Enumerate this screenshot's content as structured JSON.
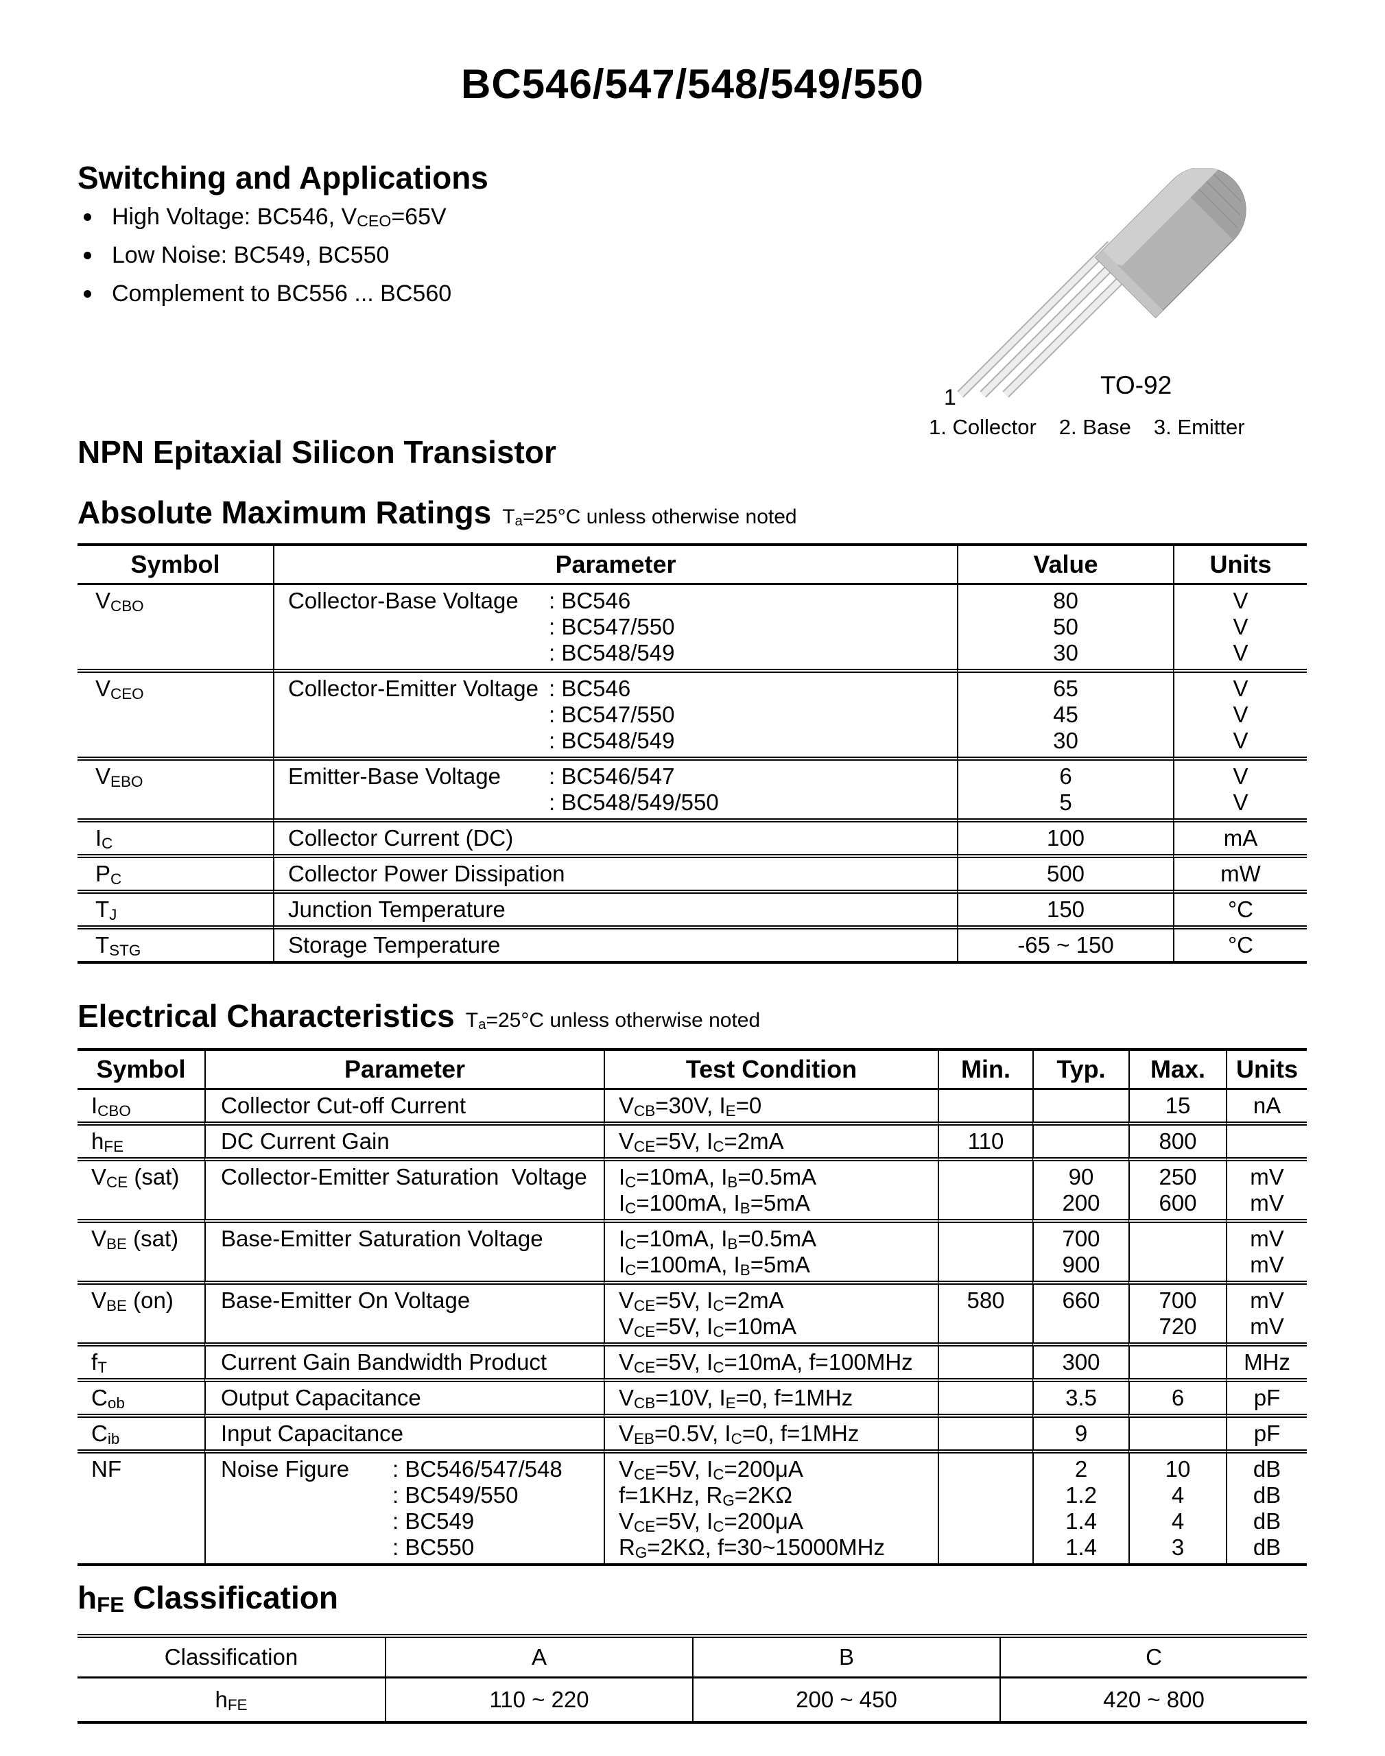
{
  "title": "BC546/547/548/549/550",
  "switching": {
    "heading": "Switching and Applications",
    "bullets": [
      "High Voltage: BC546, V_{CEO}=65V",
      "Low Noise: BC549, BC550",
      "Complement to BC556 ... BC560"
    ]
  },
  "figure": {
    "pin1_label": "1",
    "package_name": "TO-92",
    "caption": [
      "1. Collector",
      "2. Base",
      "3. Emitter"
    ]
  },
  "npn_heading": "NPN Epitaxial Silicon Transistor",
  "amr": {
    "heading": "Absolute Maximum Ratings",
    "note": "T_{a}=25°C unless otherwise noted",
    "headers": [
      "Symbol",
      "Parameter",
      "Value",
      "Units"
    ],
    "rows": [
      {
        "symbol": "V_{CBO}",
        "param": "Collector-Base Voltage",
        "variants": [
          ": BC546",
          ": BC547/550",
          ": BC548/549"
        ],
        "values": [
          "80",
          "50",
          "30"
        ],
        "units": [
          "V",
          "V",
          "V"
        ]
      },
      {
        "symbol": "V_{CEO}",
        "param": "Collector-Emitter Voltage",
        "variants": [
          ": BC546",
          ": BC547/550",
          ": BC548/549"
        ],
        "values": [
          "65",
          "45",
          "30"
        ],
        "units": [
          "V",
          "V",
          "V"
        ]
      },
      {
        "symbol": "V_{EBO}",
        "param": "Emitter-Base Voltage",
        "variants": [
          ": BC546/547",
          ": BC548/549/550"
        ],
        "values": [
          "6",
          "5"
        ],
        "units": [
          "V",
          "V"
        ]
      },
      {
        "symbol": "I_{C}",
        "param": "Collector Current (DC)",
        "variants": [],
        "values": [
          "100"
        ],
        "units": [
          "mA"
        ]
      },
      {
        "symbol": "P_{C}",
        "param": "Collector Power Dissipation",
        "variants": [],
        "values": [
          "500"
        ],
        "units": [
          "mW"
        ]
      },
      {
        "symbol": "T_{J}",
        "param": "Junction Temperature",
        "variants": [],
        "values": [
          "150"
        ],
        "units": [
          "°C"
        ]
      },
      {
        "symbol": "T_{STG}",
        "param": "Storage Temperature",
        "variants": [],
        "values": [
          "-65 ~ 150"
        ],
        "units": [
          "°C"
        ]
      }
    ]
  },
  "ec": {
    "heading": "Electrical Characteristics",
    "note": "T_{a}=25°C unless otherwise noted",
    "headers": [
      "Symbol",
      "Parameter",
      "Test Condition",
      "Min.",
      "Typ.",
      "Max.",
      "Units"
    ],
    "rows": [
      {
        "symbol": "I_{CBO}",
        "param": "Collector Cut-off Current",
        "variants": [],
        "conds": [
          "V_{CB}=30V, I_{E}=0"
        ],
        "min": [
          ""
        ],
        "typ": [
          ""
        ],
        "max": [
          "15"
        ],
        "units": [
          "nA"
        ]
      },
      {
        "symbol": "h_{FE}",
        "param": "DC Current Gain",
        "variants": [],
        "conds": [
          "V_{CE}=5V, I_{C}=2mA"
        ],
        "min": [
          "110"
        ],
        "typ": [
          ""
        ],
        "max": [
          "800"
        ],
        "units": [
          ""
        ]
      },
      {
        "symbol": "V_{CE} (sat)",
        "param": "Collector-Emitter Saturation  Voltage",
        "variants": [],
        "conds": [
          "I_{C}=10mA, I_{B}=0.5mA",
          "I_{C}=100mA, I_{B}=5mA"
        ],
        "min": [
          "",
          ""
        ],
        "typ": [
          "90",
          "200"
        ],
        "max": [
          "250",
          "600"
        ],
        "units": [
          "mV",
          "mV"
        ]
      },
      {
        "symbol": "V_{BE} (sat)",
        "param": "Base-Emitter Saturation Voltage",
        "variants": [],
        "conds": [
          "I_{C}=10mA, I_{B}=0.5mA",
          "I_{C}=100mA, I_{B}=5mA"
        ],
        "min": [
          "",
          ""
        ],
        "typ": [
          "700",
          "900"
        ],
        "max": [
          "",
          ""
        ],
        "units": [
          "mV",
          "mV"
        ]
      },
      {
        "symbol": "V_{BE} (on)",
        "param": "Base-Emitter On Voltage",
        "variants": [],
        "conds": [
          "V_{CE}=5V, I_{C}=2mA",
          "V_{CE}=5V, I_{C}=10mA"
        ],
        "min": [
          "580",
          ""
        ],
        "typ": [
          "660",
          ""
        ],
        "max": [
          "700",
          "720"
        ],
        "units": [
          "mV",
          "mV"
        ]
      },
      {
        "symbol": "f_{T}",
        "param": "Current Gain Bandwidth Product",
        "variants": [],
        "conds": [
          "V_{CE}=5V, I_{C}=10mA, f=100MHz"
        ],
        "min": [
          ""
        ],
        "typ": [
          "300"
        ],
        "max": [
          ""
        ],
        "units": [
          "MHz"
        ]
      },
      {
        "symbol": "C_{ob}",
        "param": "Output Capacitance",
        "variants": [],
        "conds": [
          "V_{CB}=10V, I_{E}=0, f=1MHz"
        ],
        "min": [
          ""
        ],
        "typ": [
          "3.5"
        ],
        "max": [
          "6"
        ],
        "units": [
          "pF"
        ]
      },
      {
        "symbol": "C_{ib}",
        "param": "Input Capacitance",
        "variants": [],
        "conds": [
          "V_{EB}=0.5V, I_{C}=0, f=1MHz"
        ],
        "min": [
          ""
        ],
        "typ": [
          "9"
        ],
        "max": [
          ""
        ],
        "units": [
          "pF"
        ]
      },
      {
        "symbol": "NF",
        "param": "Noise Figure",
        "variants": [
          ": BC546/547/548",
          ": BC549/550",
          ": BC549",
          ": BC550"
        ],
        "conds": [
          "V_{CE}=5V, I_{C}=200μA",
          "f=1KHz, R_{G}=2KΩ",
          "V_{CE}=5V, I_{C}=200μA",
          "R_{G}=2KΩ, f=30~15000MHz"
        ],
        "min": [
          "",
          "",
          "",
          ""
        ],
        "typ": [
          "2",
          "1.2",
          "1.4",
          "1.4"
        ],
        "max": [
          "10",
          "4",
          "4",
          "3"
        ],
        "units": [
          "dB",
          "dB",
          "dB",
          "dB"
        ]
      }
    ]
  },
  "hfe": {
    "heading": "h_{FE} Classification",
    "headers": [
      "Classification",
      "A",
      "B",
      "C"
    ],
    "row_label": "h_{FE}",
    "values": [
      "110 ~ 220",
      "200 ~ 450",
      "420 ~ 800"
    ]
  }
}
